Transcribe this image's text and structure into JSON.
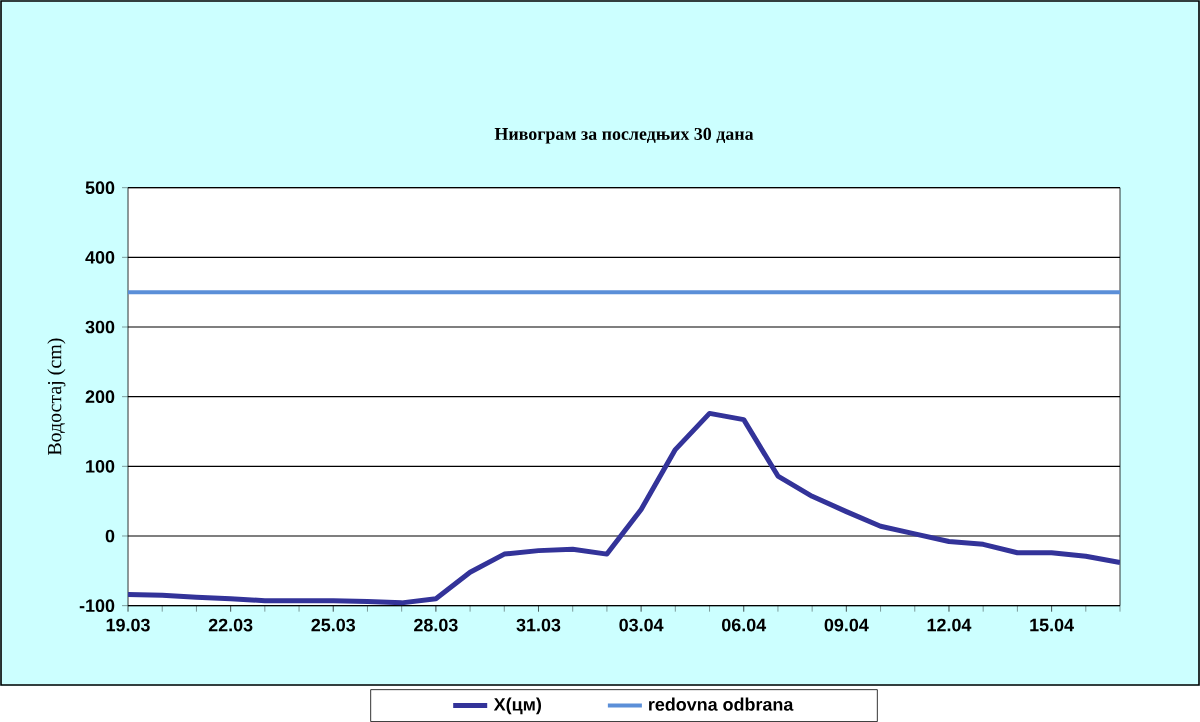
{
  "chart_data": {
    "type": "line",
    "title": "Нивограм за последњих 30 дана",
    "ylabel": "Водостај (cm)",
    "categories": [
      "19.03",
      null,
      null,
      "22.03",
      null,
      null,
      "25.03",
      null,
      null,
      "28.03",
      null,
      null,
      "31.03",
      null,
      null,
      "03.04",
      null,
      null,
      "06.04",
      null,
      null,
      "09.04",
      null,
      null,
      "12.04",
      null,
      null,
      "15.04",
      null,
      null
    ],
    "series": [
      {
        "name": "X(цм)",
        "color": "#333399",
        "values": [
          -84,
          -85,
          -88,
          -90,
          -93,
          -93,
          -93,
          -94,
          -96,
          -90,
          -52,
          -26,
          -21,
          -19,
          -26,
          38,
          124,
          176,
          167,
          86,
          57,
          35,
          14,
          3,
          -8,
          -12,
          -24,
          -24,
          -29,
          -38
        ]
      },
      {
        "name": "redovna odbrana",
        "color": "#5b8fd8",
        "values": [
          350,
          350,
          350,
          350,
          350,
          350,
          350,
          350,
          350,
          350,
          350,
          350,
          350,
          350,
          350,
          350,
          350,
          350,
          350,
          350,
          350,
          350,
          350,
          350,
          350,
          350,
          350,
          350,
          350,
          350
        ]
      }
    ],
    "ylim": [
      -100,
      500
    ],
    "yticks": [
      -100,
      0,
      100,
      200,
      300,
      400,
      500
    ],
    "grid": "y",
    "legend": "bottom",
    "marker": "none",
    "line_style": "solid"
  }
}
